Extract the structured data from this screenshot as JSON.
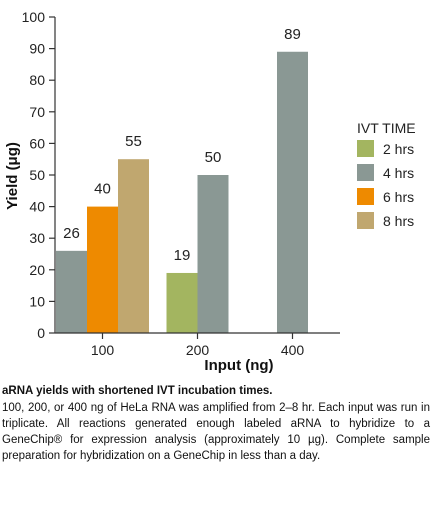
{
  "chart_data": {
    "type": "bar",
    "title": "",
    "xlabel": "Input (ng)",
    "ylabel": "Yield (μg)",
    "ylim": [
      0,
      100
    ],
    "yticks": [
      0,
      10,
      20,
      30,
      40,
      50,
      60,
      70,
      80,
      90,
      100
    ],
    "categories": [
      "100",
      "200",
      "400"
    ],
    "legend_title": "IVT TIME",
    "legend_position": "right",
    "grid": false,
    "series": [
      {
        "name": "2 hrs",
        "color": "#a3b560",
        "values": [
          null,
          19,
          null
        ]
      },
      {
        "name": "4 hrs",
        "color": "#8a9894",
        "values": [
          26,
          50,
          89
        ]
      },
      {
        "name": "6 hrs",
        "color": "#ee8a00",
        "values": [
          40,
          null,
          null
        ]
      },
      {
        "name": "8 hrs",
        "color": "#c0a76f",
        "values": [
          55,
          null,
          null
        ]
      }
    ]
  },
  "caption": {
    "title": "aRNA yields with shortened IVT incubation times.",
    "body": "100, 200, or 400 ng of HeLa RNA was amplified from 2–8 hr. Each input was run in triplicate. All reactions generated enough labeled aRNA to hybridize to a GeneChip® for expression analysis (approximately 10 µg). Complete sample preparation for hybridization on a GeneChip in less than a day."
  }
}
